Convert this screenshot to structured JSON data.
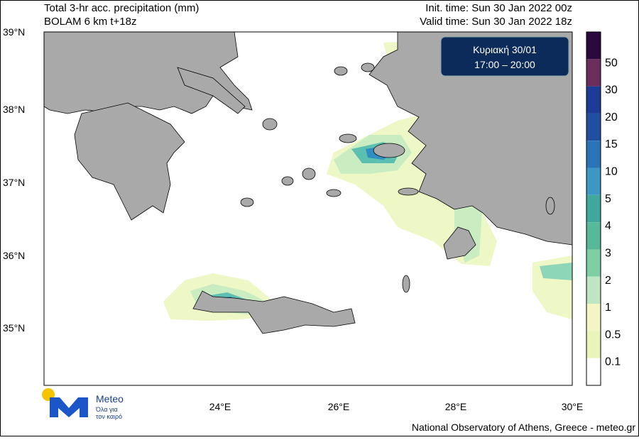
{
  "header": {
    "title_line1": "Total 3-hr acc. precipitation (mm)",
    "title_line2": "BOLAM 6 km t+18z",
    "init_time": "Init. time: Sun 30 Jan 2022 00z",
    "valid_time": "Valid time: Sun 30 Jan 2022 18z"
  },
  "badge": {
    "line1": "Κυριακή 30/01",
    "line2": "17:00 – 20:00"
  },
  "map": {
    "lat_labels": [
      "39°N",
      "38°N",
      "37°N",
      "36°N",
      "35°N"
    ],
    "lon_labels": [
      "24°E",
      "26°E",
      "28°E",
      "30°E"
    ]
  },
  "legend": {
    "labels": [
      "50",
      "30",
      "20",
      "15",
      "10",
      "5",
      "4",
      "3",
      "2",
      "1",
      "0.5",
      "0.1"
    ]
  },
  "logo": {
    "name": "Meteo",
    "tagline_line1": "Όλα για",
    "tagline_line2": "τον καιρό"
  },
  "footer": "National Observatory of Athens, Greece - meteo.gr"
}
